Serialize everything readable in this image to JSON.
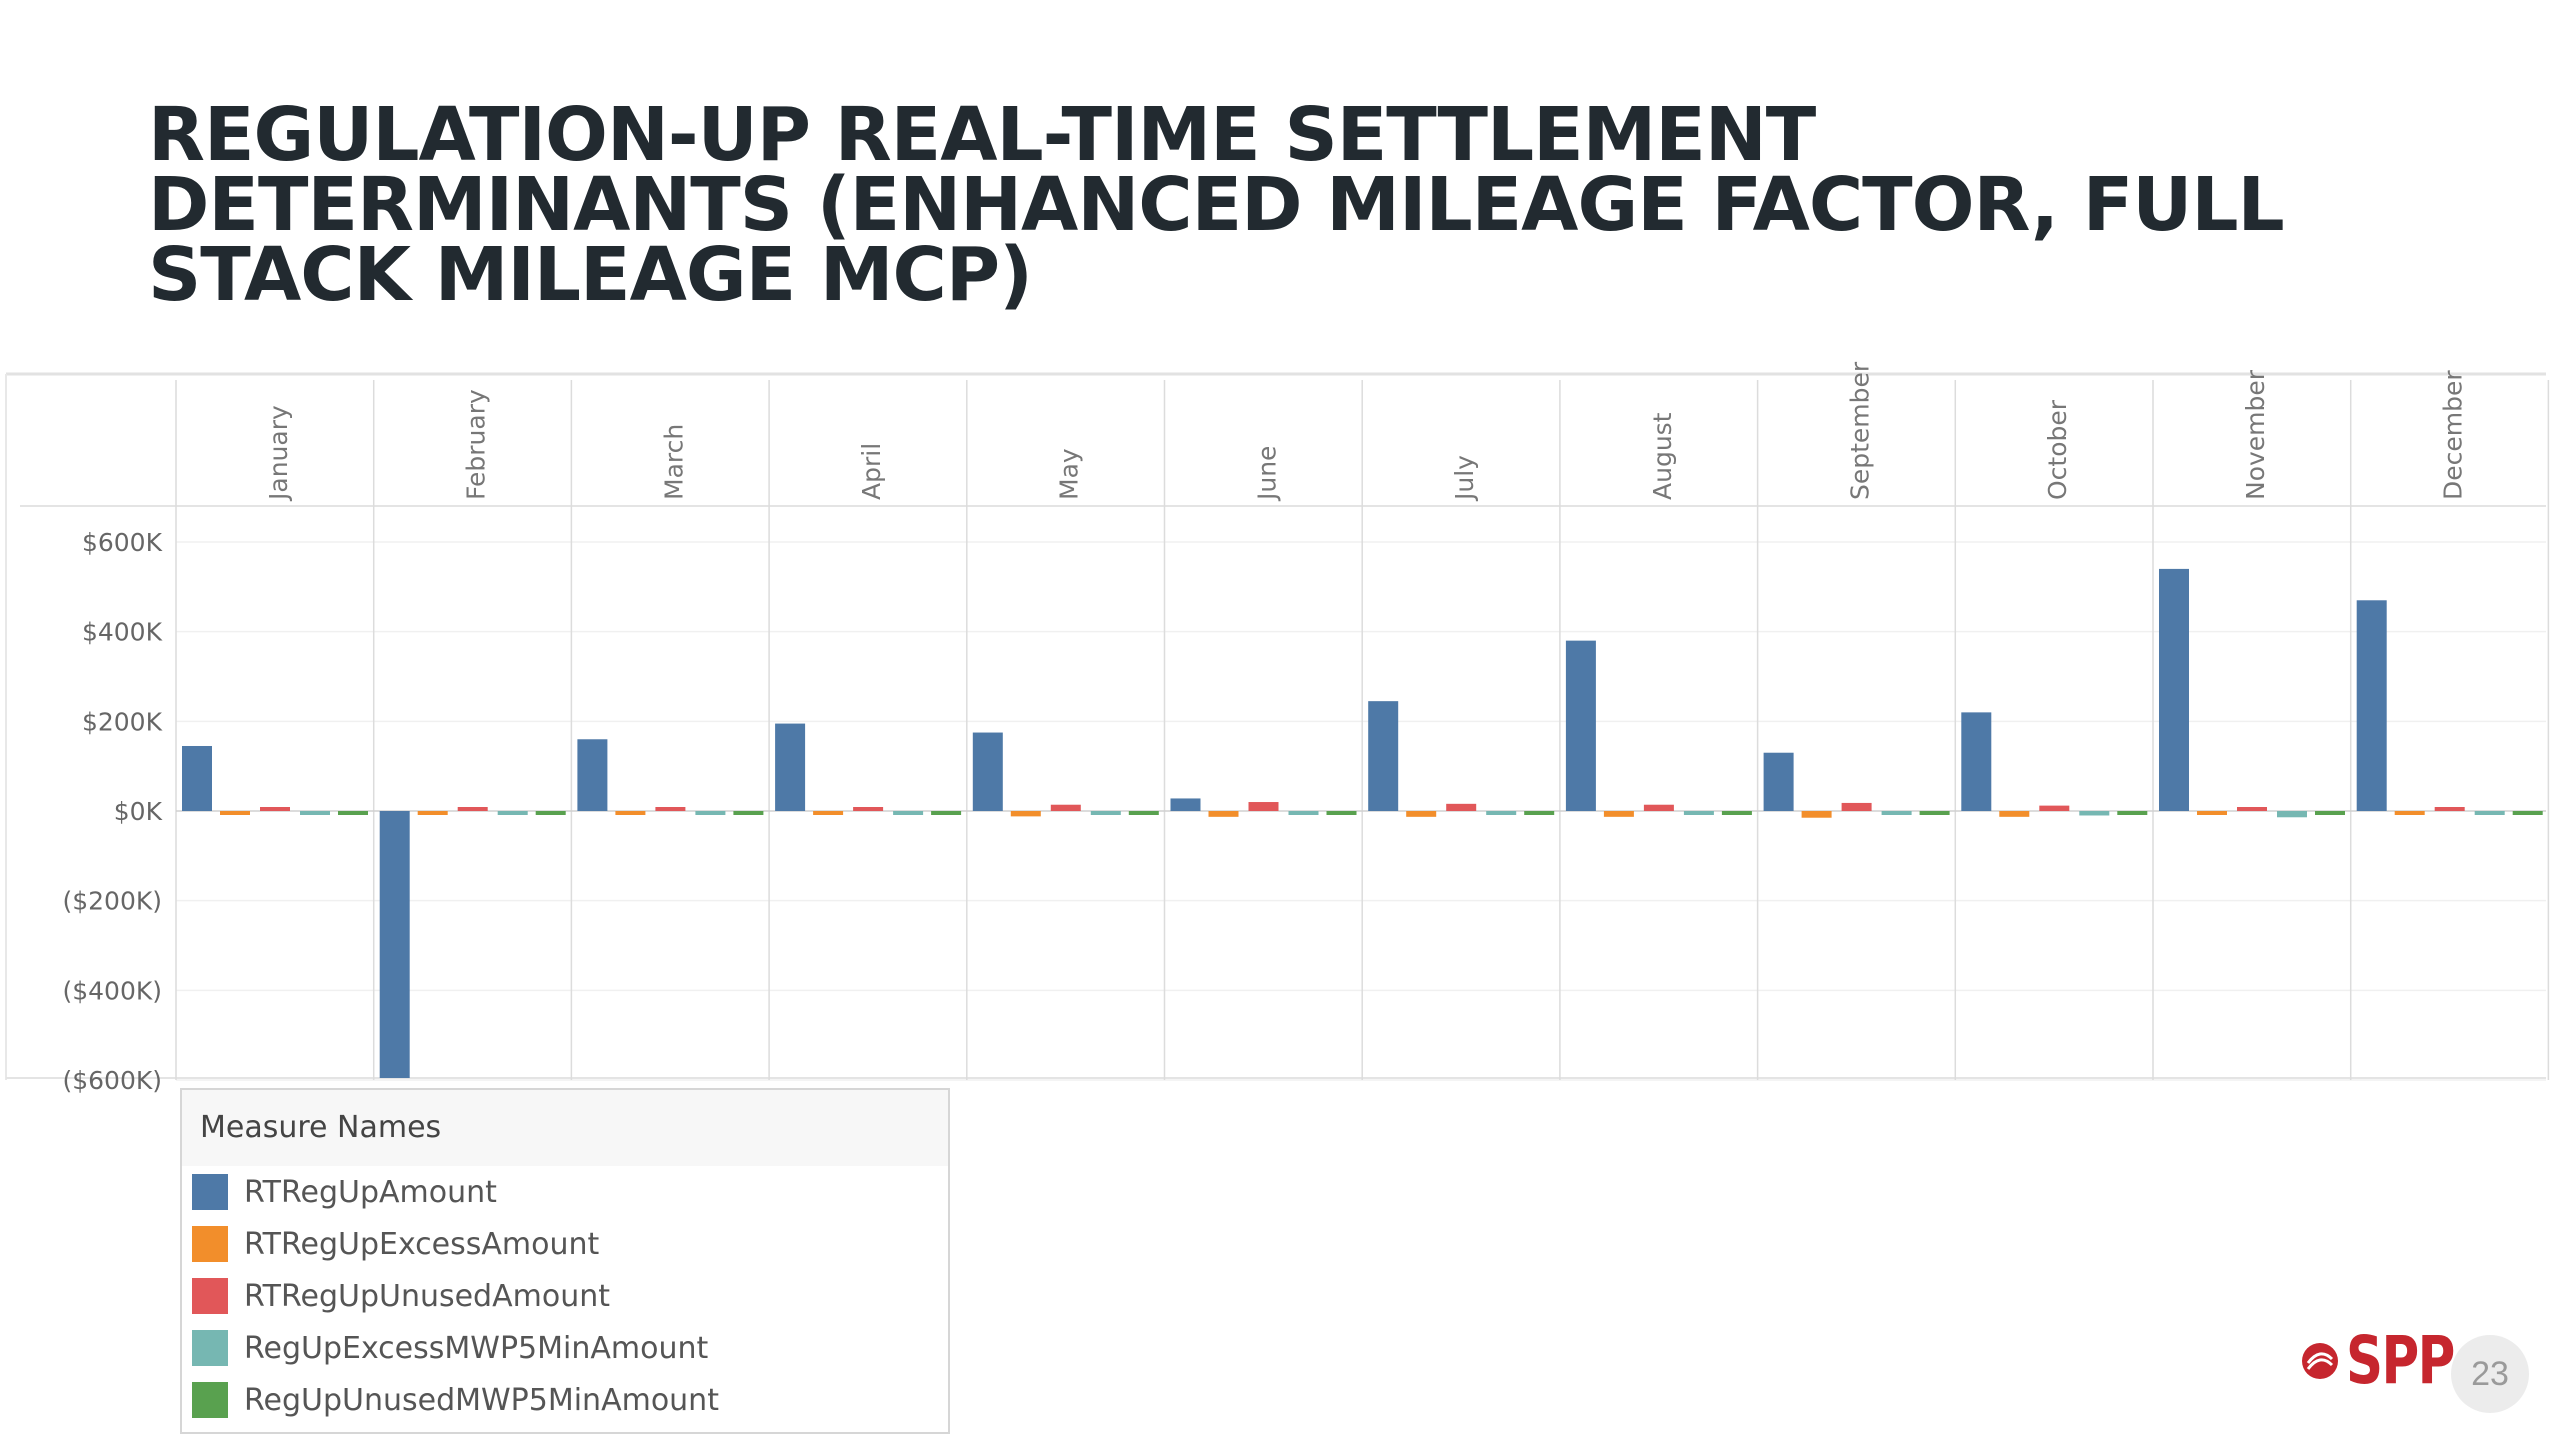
{
  "slide": {
    "title_lines": [
      "REGULATION-UP REAL-TIME SETTLEMENT",
      "DETERMINANTS (ENHANCED MILEAGE FACTOR, FULL",
      "STACK MILEAGE MCP)"
    ],
    "logo_text": "SPP",
    "page_number": "23"
  },
  "legend": {
    "title": "Measure Names"
  },
  "chart_data": {
    "type": "bar",
    "layout": "panels-by-month",
    "categories": [
      "January",
      "February",
      "March",
      "April",
      "May",
      "June",
      "July",
      "August",
      "September",
      "October",
      "November",
      "December"
    ],
    "y_ticks": [
      600000,
      400000,
      200000,
      0,
      -200000,
      -400000,
      -600000
    ],
    "y_tick_labels": [
      "$600K",
      "$400K",
      "$200K",
      "$0K",
      "($200K)",
      "($400K)",
      "($600K)"
    ],
    "ylim": [
      -620000,
      650000
    ],
    "grid": true,
    "legend_position": "bottom-left",
    "series": [
      {
        "name": "RTRegUpAmount",
        "color": "#4e79a7",
        "values": [
          145000,
          -600000,
          160000,
          195000,
          175000,
          28000,
          245000,
          380000,
          130000,
          220000,
          540000,
          470000
        ]
      },
      {
        "name": "RTRegUpExcessAmount",
        "color": "#f28e2b",
        "values": [
          -8000,
          -5000,
          -8000,
          -6000,
          -12000,
          -13000,
          -13000,
          -13000,
          -15000,
          -13000,
          -6000,
          -3000
        ]
      },
      {
        "name": "RTRegUpUnusedAmount",
        "color": "#e15759",
        "values": [
          6000,
          5000,
          8000,
          6000,
          14000,
          20000,
          16000,
          14000,
          18000,
          12000,
          6000,
          5000
        ]
      },
      {
        "name": "RegUpExcessMWP5MinAmount",
        "color": "#76b7b2",
        "values": [
          -4000,
          -3000,
          -8000,
          -3000,
          -3000,
          -3000,
          -4000,
          -4000,
          -6000,
          -10000,
          -14000,
          -6000
        ]
      },
      {
        "name": "RegUpUnusedMWP5MinAmount",
        "color": "#59a14f",
        "values": [
          -2000,
          -2000,
          -3000,
          -2000,
          -2000,
          -2000,
          -2000,
          -2000,
          -2000,
          -2000,
          -2000,
          -2000
        ]
      }
    ]
  }
}
